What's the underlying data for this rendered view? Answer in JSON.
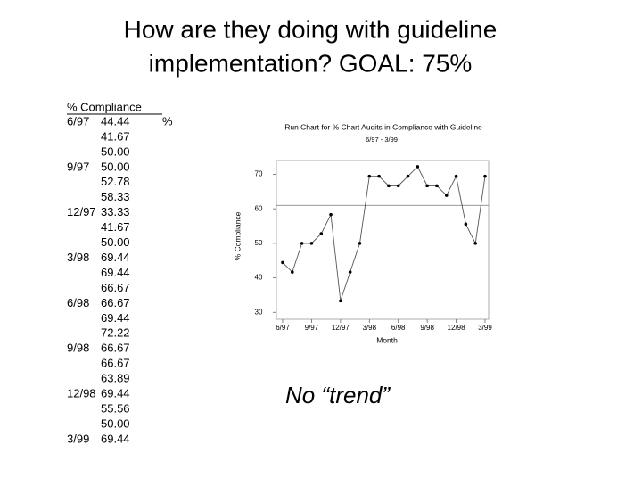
{
  "title": [
    "How are they doing with guideline",
    "implementation?  GOAL:  75%"
  ],
  "table": {
    "header": "% Compliance",
    "unit": "%",
    "rows": [
      {
        "month": "6/97",
        "value": "44.44"
      },
      {
        "value": "41.67"
      },
      {
        "value": "50.00"
      },
      {
        "month": "9/97",
        "value": "50.00"
      },
      {
        "value": "52.78"
      },
      {
        "value": "58.33"
      },
      {
        "month": "12/97",
        "value": "33.33"
      },
      {
        "value": "41.67"
      },
      {
        "value": "50.00"
      },
      {
        "month": "3/98",
        "value": "69.44"
      },
      {
        "value": "69.44"
      },
      {
        "value": "66.67"
      },
      {
        "month": "6/98",
        "value": "66.67"
      },
      {
        "value": "69.44"
      },
      {
        "value": "72.22"
      },
      {
        "month": "9/98",
        "value": "66.67"
      },
      {
        "value": "66.67"
      },
      {
        "value": "63.89"
      },
      {
        "month": "12/98",
        "value": "69.44"
      },
      {
        "value": "55.56"
      },
      {
        "value": "50.00"
      },
      {
        "month": "3/99",
        "value": "69.44"
      }
    ]
  },
  "note": "No “trend”",
  "chart_data": {
    "type": "line",
    "title": "Run Chart for % Chart Audits in Compliance with Guideline",
    "subtitle": "6/97 - 3/99",
    "x_label": "Month",
    "y_label": "% Compliance",
    "categories": [
      "6/97",
      null,
      null,
      "9/97",
      null,
      null,
      "12/97",
      null,
      null,
      "3/98",
      null,
      null,
      "6/98",
      null,
      null,
      "9/98",
      null,
      null,
      "12/98",
      null,
      null,
      "3/99"
    ],
    "values": [
      44.44,
      41.67,
      50.0,
      50.0,
      52.78,
      58.33,
      33.33,
      41.67,
      50.0,
      69.44,
      69.44,
      66.67,
      66.67,
      69.44,
      72.22,
      66.67,
      66.67,
      63.89,
      69.44,
      55.56,
      50.0,
      69.44
    ],
    "color": "#555555",
    "reference_line": 61,
    "ylim": [
      28,
      74
    ],
    "yticks": [
      30,
      40,
      50,
      60,
      70
    ]
  }
}
